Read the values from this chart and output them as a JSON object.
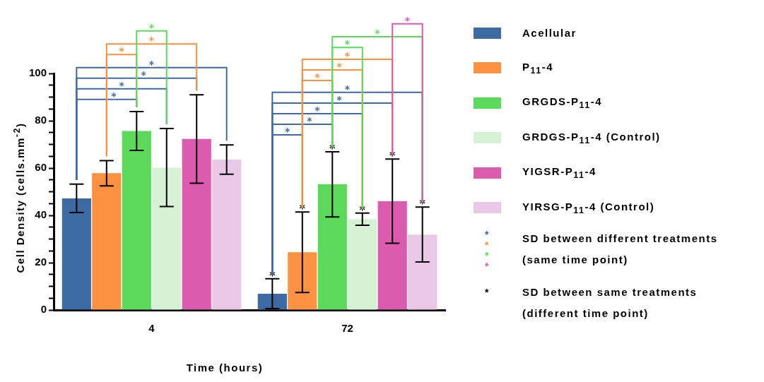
{
  "chart_data": {
    "type": "bar",
    "xlabel": "Time (hours)",
    "ylabel": "Cell Density (cells.mm$^{-2}$)",
    "categories": [
      "4",
      "72"
    ],
    "series": [
      {
        "name": "Acellular",
        "color": "#3d6aa3",
        "values": [
          47.2,
          6.9
        ],
        "errors": [
          6,
          6.3
        ]
      },
      {
        "name": "P$_{11}$-4",
        "color": "#fb9141",
        "values": [
          57.8,
          24.4
        ],
        "errors": [
          5.3,
          17
        ]
      },
      {
        "name": "GRGDS-P$_{11}$-4",
        "color": "#5cd95a",
        "values": [
          75.7,
          53.1
        ],
        "errors": [
          8.2,
          13.8
        ]
      },
      {
        "name": "GRDGS-P$_{11}$-4 (Control)",
        "color": "#d5f3d4",
        "values": [
          60.2,
          38.4
        ],
        "errors": [
          16.5,
          2.6
        ]
      },
      {
        "name": "YIGSR-P$_{11}$-4",
        "color": "#db5cae",
        "values": [
          72.3,
          46
        ],
        "errors": [
          18.7,
          17.8
        ]
      },
      {
        "name": "YIRSG-P$_{11}$-4 (Control)",
        "color": "#e9c8e5",
        "values": [
          63.6,
          31.9
        ],
        "errors": [
          6.2,
          11.6
        ]
      }
    ],
    "ylim": [
      0,
      100
    ],
    "yticks": [
      0,
      {
        "value": 5,
        "label": null
      },
      {
        "value": 10,
        "label": null
      },
      {
        "value": 15,
        "label": null
      },
      20,
      {
        "value": 25,
        "label": null
      },
      {
        "value": 30,
        "label": null
      },
      {
        "value": 35,
        "label": null
      },
      40,
      {
        "value": 45,
        "label": null
      },
      {
        "value": 50,
        "label": null
      },
      {
        "value": 55,
        "label": null
      },
      60,
      {
        "value": 65,
        "label": null
      },
      {
        "value": 70,
        "label": null
      },
      {
        "value": 75,
        "label": null
      },
      80,
      {
        "value": 85,
        "label": null
      },
      {
        "value": 90,
        "label": null
      },
      {
        "value": 95,
        "label": null
      },
      100
    ],
    "grid": false,
    "legend": "right",
    "annotations": [
      "*",
      "*",
      "*",
      "*",
      "*",
      "*",
      "*",
      "*",
      "*",
      "*",
      "*",
      "*",
      "*",
      "*",
      "*",
      "*",
      "*",
      "*",
      "*",
      "*",
      "*",
      "*",
      "*",
      "*",
      "SD between different treatments (same time point)",
      "SD between same treatments (different time point)",
      "*",
      "*",
      "*",
      "*",
      "*"
    ]
  }
}
